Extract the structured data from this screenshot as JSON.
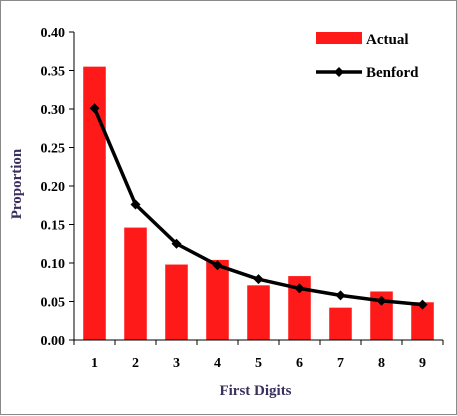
{
  "chart_data": {
    "type": "bar",
    "categories": [
      "1",
      "2",
      "3",
      "4",
      "5",
      "6",
      "7",
      "8",
      "9"
    ],
    "series": [
      {
        "name": "Actual",
        "kind": "bar",
        "color": "#ff1a1a",
        "values": [
          0.355,
          0.146,
          0.098,
          0.104,
          0.071,
          0.083,
          0.042,
          0.063,
          0.049
        ]
      },
      {
        "name": "Benford",
        "kind": "line",
        "color": "#000000",
        "values": [
          0.301,
          0.176,
          0.125,
          0.097,
          0.079,
          0.067,
          0.058,
          0.051,
          0.046
        ]
      }
    ],
    "xlabel": "First Digits",
    "ylabel": "Proportion",
    "ylim": [
      0,
      0.4
    ],
    "yticks": [
      "0.00",
      "0.05",
      "0.10",
      "0.15",
      "0.20",
      "0.25",
      "0.30",
      "0.35",
      "0.40"
    ],
    "grid": false,
    "legend": "top-right"
  }
}
